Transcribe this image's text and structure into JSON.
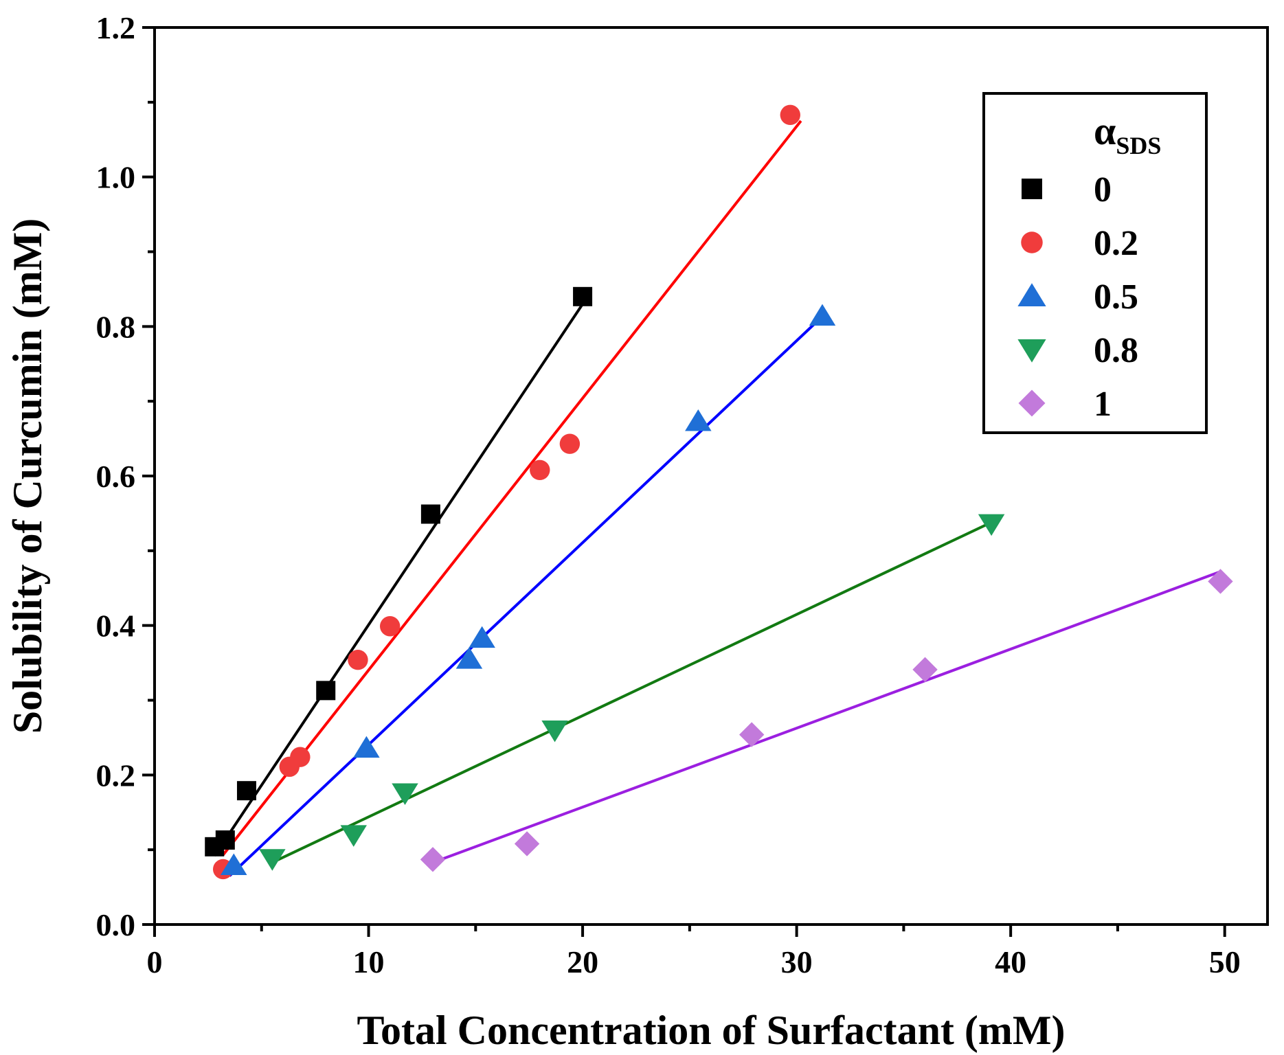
{
  "chart_data": {
    "type": "scatter",
    "title": "",
    "xlabel": "Total Concentration of Surfactant (mM)",
    "ylabel": "Solubility of Curcumin (mM)",
    "xlim": [
      0,
      52
    ],
    "ylim": [
      0,
      1.2
    ],
    "xticks": [
      0,
      10,
      20,
      30,
      40,
      50
    ],
    "xtick_labels": [
      "0",
      "10",
      "20",
      "30",
      "40",
      "50"
    ],
    "yticks": [
      0,
      0.2,
      0.4,
      0.6,
      0.8,
      1.0,
      1.2
    ],
    "ytick_labels": [
      "0.0",
      "0.2",
      "0.4",
      "0.6",
      "0.8",
      "1.0",
      "1.2"
    ],
    "legend": {
      "title_main": "α",
      "title_sub": "SDS",
      "position": "top-right"
    },
    "series": [
      {
        "name": "0",
        "marker": "square",
        "color": "#000000",
        "line_color": "#000000",
        "x": [
          2.8,
          3.3,
          4.3,
          8.0,
          12.9,
          20.0
        ],
        "y": [
          0.104,
          0.113,
          0.179,
          0.313,
          0.549,
          0.84
        ],
        "fit_x": [
          2.8,
          20.0
        ],
        "fit_y": [
          0.092,
          0.83
        ]
      },
      {
        "name": "0.2",
        "marker": "circle",
        "color": "#F03C3C",
        "line_color": "#FF0000",
        "x": [
          3.2,
          6.3,
          6.8,
          9.5,
          11.0,
          18.0,
          19.4,
          29.7
        ],
        "y": [
          0.074,
          0.211,
          0.224,
          0.354,
          0.399,
          0.608,
          0.643,
          1.083
        ],
        "fit_x": [
          3.2,
          30.2
        ],
        "fit_y": [
          0.093,
          1.075
        ]
      },
      {
        "name": "0.5",
        "marker": "triangle-up",
        "color": "#1F6FD6",
        "line_color": "#0000FF",
        "x": [
          3.7,
          9.9,
          14.7,
          15.3,
          25.4,
          31.2
        ],
        "y": [
          0.079,
          0.236,
          0.355,
          0.383,
          0.673,
          0.814
        ],
        "fit_x": [
          3.5,
          31.0
        ],
        "fit_y": [
          0.065,
          0.808
        ]
      },
      {
        "name": "0.8",
        "marker": "triangle-down",
        "color": "#1E9E5A",
        "line_color": "#127A12",
        "x": [
          5.5,
          9.3,
          11.7,
          18.7,
          39.1
        ],
        "y": [
          0.088,
          0.12,
          0.176,
          0.26,
          0.536
        ],
        "fit_x": [
          5.5,
          39.1
        ],
        "fit_y": [
          0.083,
          0.538
        ]
      },
      {
        "name": "1",
        "marker": "diamond",
        "color": "#C27ADB",
        "line_color": "#9B1FE0",
        "x": [
          13.0,
          17.4,
          27.9,
          36.0,
          49.8
        ],
        "y": [
          0.087,
          0.108,
          0.254,
          0.341,
          0.459
        ],
        "fit_x": [
          13.0,
          49.8
        ],
        "fit_y": [
          0.083,
          0.472
        ]
      }
    ]
  }
}
